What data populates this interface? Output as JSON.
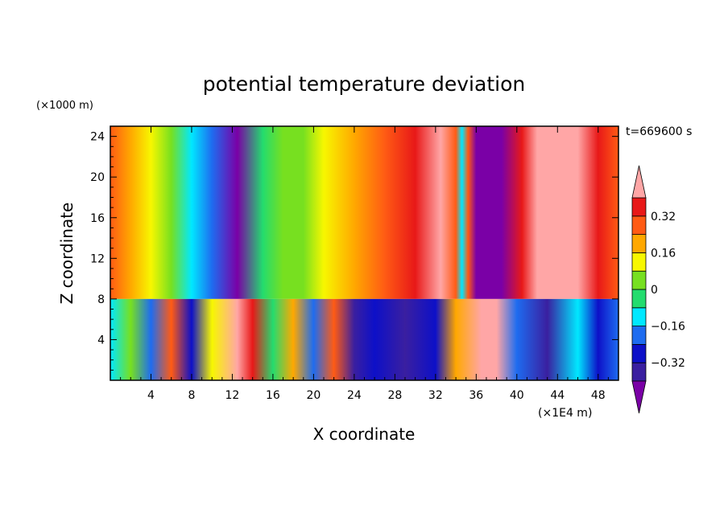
{
  "chart_data": {
    "type": "heatmap",
    "title": "potential temperature deviation",
    "xlabel": "X coordinate",
    "ylabel": "Z coordinate",
    "x_unit": "(×1E4 m)",
    "y_unit": "(×1000 m)",
    "time_label": "t=669600 s",
    "xlim": [
      0,
      50
    ],
    "ylim": [
      0,
      25
    ],
    "x_ticks": [
      4,
      8,
      12,
      16,
      20,
      24,
      28,
      32,
      36,
      40,
      44,
      48
    ],
    "y_ticks": [
      4,
      8,
      12,
      16,
      20,
      24
    ],
    "colorbar": {
      "levels": [
        -0.4,
        -0.32,
        -0.24,
        -0.16,
        -0.08,
        0,
        0.08,
        0.16,
        0.24,
        0.32,
        0.4
      ],
      "tick_labels": [
        "0.32",
        "0.16",
        "0",
        "−0.16",
        "−0.32"
      ],
      "tick_values": [
        0.32,
        0.16,
        0,
        -0.16,
        -0.32
      ],
      "colors": [
        "#7a00a6",
        "#3a1fa0",
        "#0d10c8",
        "#1e6cf0",
        "#00e8ff",
        "#23dc6e",
        "#77e020",
        "#f7f700",
        "#ffa800",
        "#ff5b14",
        "#e81818",
        "#ffa6a6"
      ],
      "extends": "both"
    },
    "upper_layer": {
      "z_range": [
        8,
        25
      ],
      "columns": [
        {
          "x": 0,
          "value": 0.3
        },
        {
          "x": 2,
          "value": 0.22
        },
        {
          "x": 4,
          "value": 0.12
        },
        {
          "x": 6,
          "value": 0.02
        },
        {
          "x": 8,
          "value": -0.13
        },
        {
          "x": 10,
          "value": -0.24
        },
        {
          "x": 12.5,
          "value": -0.42
        },
        {
          "x": 15,
          "value": -0.02
        },
        {
          "x": 17,
          "value": 0.06
        },
        {
          "x": 19,
          "value": 0.04
        },
        {
          "x": 21,
          "value": 0.13
        },
        {
          "x": 24,
          "value": 0.18
        },
        {
          "x": 27,
          "value": 0.26
        },
        {
          "x": 30,
          "value": 0.34
        },
        {
          "x": 32.5,
          "value": 0.42
        },
        {
          "x": 34,
          "value": 0.3
        },
        {
          "x": 34.6,
          "value": -0.1
        },
        {
          "x": 35.2,
          "value": 0.3
        },
        {
          "x": 36,
          "value": -0.42
        },
        {
          "x": 38.5,
          "value": -0.42
        },
        {
          "x": 40.5,
          "value": 0.32
        },
        {
          "x": 42,
          "value": 0.42
        },
        {
          "x": 46,
          "value": 0.42
        },
        {
          "x": 48,
          "value": 0.32
        },
        {
          "x": 50,
          "value": 0.28
        }
      ]
    },
    "lower_layer": {
      "z_range": [
        0,
        8
      ],
      "columns": [
        {
          "x": 0,
          "value": -0.1
        },
        {
          "x": 2,
          "value": 0.05
        },
        {
          "x": 4,
          "value": -0.2
        },
        {
          "x": 6,
          "value": 0.3
        },
        {
          "x": 8,
          "value": -0.3
        },
        {
          "x": 10,
          "value": 0.1
        },
        {
          "x": 12.5,
          "value": 0.42
        },
        {
          "x": 14,
          "value": 0.35
        },
        {
          "x": 16,
          "value": -0.05
        },
        {
          "x": 18,
          "value": 0.2
        },
        {
          "x": 20,
          "value": -0.2
        },
        {
          "x": 22,
          "value": 0.25
        },
        {
          "x": 24,
          "value": -0.35
        },
        {
          "x": 26,
          "value": -0.25
        },
        {
          "x": 29,
          "value": -0.4
        },
        {
          "x": 32,
          "value": -0.3
        },
        {
          "x": 34,
          "value": 0.2
        },
        {
          "x": 36.5,
          "value": 0.42
        },
        {
          "x": 38,
          "value": 0.4
        },
        {
          "x": 40,
          "value": -0.2
        },
        {
          "x": 43,
          "value": -0.35
        },
        {
          "x": 46,
          "value": -0.15
        },
        {
          "x": 48,
          "value": -0.25
        },
        {
          "x": 50,
          "value": -0.2
        }
      ]
    }
  }
}
